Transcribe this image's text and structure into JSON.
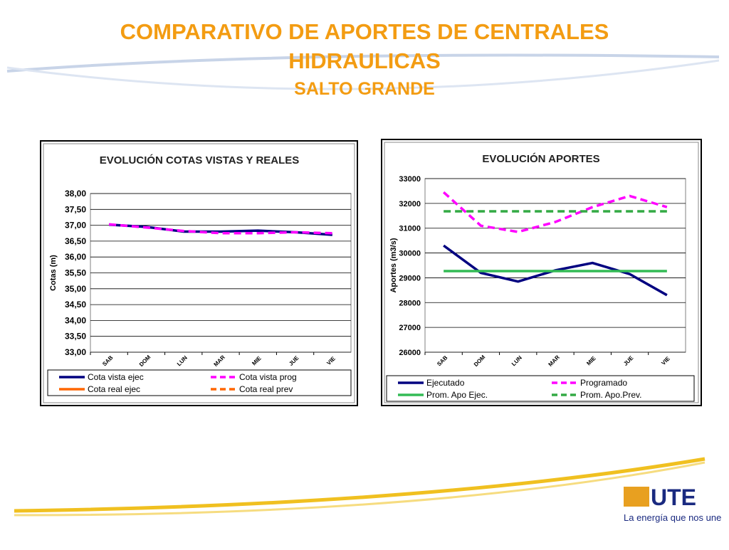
{
  "header": {
    "title_line1": "COMPARATIVO DE APORTES DE CENTRALES",
    "title_line2": "HIDRAULICAS",
    "subtitle": "SALTO GRANDE"
  },
  "logo": {
    "brand": "UTE",
    "tagline": "La energía que nos une"
  },
  "chart_data": [
    {
      "type": "line",
      "title": "EVOLUCIÓN  COTAS VISTAS Y REALES",
      "y_label": "Cotas (m)",
      "categories": [
        "SAB",
        "DOM",
        "LUN",
        "MAR",
        "MIE",
        "JUE",
        "VIE"
      ],
      "ylim": [
        33,
        38
      ],
      "yticks": [
        {
          "value": 33,
          "label": "33,00"
        },
        {
          "value": 33.5,
          "label": "33,50"
        },
        {
          "value": 34,
          "label": "34,00"
        },
        {
          "value": 34.5,
          "label": "34,50"
        },
        {
          "value": 35,
          "label": "35,00"
        },
        {
          "value": 35.5,
          "label": "35,50"
        },
        {
          "value": 36,
          "label": "36,00"
        },
        {
          "value": 36.5,
          "label": "36,50"
        },
        {
          "value": 37,
          "label": "37,00"
        },
        {
          "value": 37.5,
          "label": "37,50"
        },
        {
          "value": 38,
          "label": "38,00"
        }
      ],
      "grid": true,
      "series": [
        {
          "name": "Cota vista ejec",
          "color": "#000080",
          "dash": false,
          "values": [
            37.02,
            36.95,
            36.8,
            36.8,
            36.83,
            36.78,
            36.7
          ]
        },
        {
          "name": "Cota vista prog",
          "color": "#ff00ff",
          "dash": true,
          "values": [
            37.03,
            36.93,
            36.82,
            36.75,
            36.75,
            36.78,
            36.75
          ]
        },
        {
          "name": "Cota real ejec",
          "color": "#ff6600",
          "dash": false,
          "values": [
            null,
            null,
            null,
            null,
            null,
            null,
            null
          ]
        },
        {
          "name": "Cota real prev",
          "color": "#ff6600",
          "dash": true,
          "values": [
            null,
            null,
            null,
            null,
            null,
            null,
            null
          ]
        }
      ]
    },
    {
      "type": "line",
      "title": "EVOLUCIÓN  APORTES",
      "y_label": "Aportes (m3/s)",
      "categories": [
        "SAB",
        "DOM",
        "LUN",
        "MAR",
        "MIE",
        "JUE",
        "VIE"
      ],
      "ylim": [
        26000,
        33000
      ],
      "yticks": [
        26000,
        27000,
        28000,
        29000,
        30000,
        31000,
        32000,
        33000
      ],
      "grid": true,
      "series": [
        {
          "name": "Ejecutado",
          "color": "#000080",
          "dash": false,
          "values": [
            30300,
            29200,
            28850,
            29300,
            29600,
            29150,
            28300
          ]
        },
        {
          "name": "Programado",
          "color": "#ff00ff",
          "dash": true,
          "values": [
            32450,
            31100,
            30850,
            31250,
            31850,
            32300,
            31850
          ]
        },
        {
          "name": "Prom. Apo Ejec.",
          "color": "#33bb55",
          "dash": false,
          "values": [
            29270,
            29270,
            29270,
            29270,
            29270,
            29270,
            29270
          ]
        },
        {
          "name": "Prom. Apo.Prev.",
          "color": "#33aa44",
          "dash": true,
          "values": [
            31680,
            31680,
            31680,
            31680,
            31680,
            31680,
            31680
          ]
        }
      ]
    }
  ]
}
